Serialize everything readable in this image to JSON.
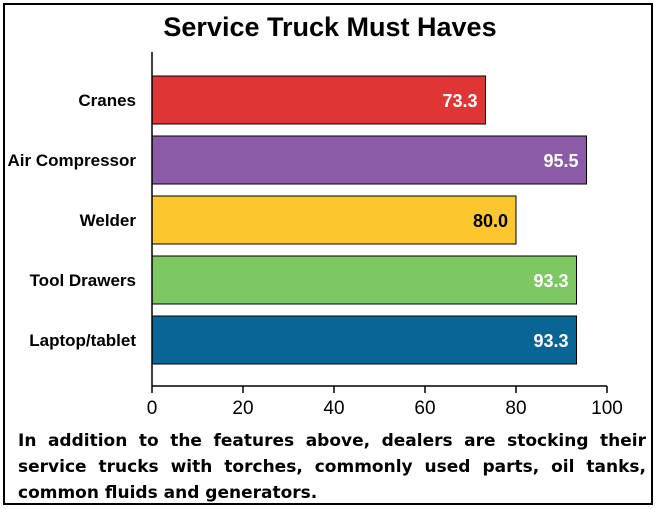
{
  "chart_data": {
    "type": "bar",
    "orientation": "horizontal",
    "title": "Service Truck Must Haves",
    "categories": [
      "Cranes",
      "Air Compressor",
      "Welder",
      "Tool Drawers",
      "Laptop/tablet"
    ],
    "values": [
      73.3,
      95.5,
      80.0,
      93.3,
      93.3
    ],
    "value_labels": [
      "73.3",
      "95.5",
      "80.0",
      "93.3",
      "93.3"
    ],
    "colors": [
      "#e03535",
      "#8c5ba8",
      "#fcc72e",
      "#7dc863",
      "#0a6597"
    ],
    "label_colors": [
      "#ffffff",
      "#ffffff",
      "#000000",
      "#ffffff",
      "#ffffff"
    ],
    "xlim": [
      0,
      100
    ],
    "xticks": [
      0,
      20,
      40,
      60,
      80,
      100
    ],
    "xtick_labels": [
      "0",
      "20",
      "40",
      "60",
      "80",
      "100"
    ],
    "grid": false,
    "xlabel": "",
    "ylabel": ""
  },
  "caption": "In addition to the features above, dealers are stocking their service trucks with torches, commonly used parts, oil tanks, common fluids and generators."
}
